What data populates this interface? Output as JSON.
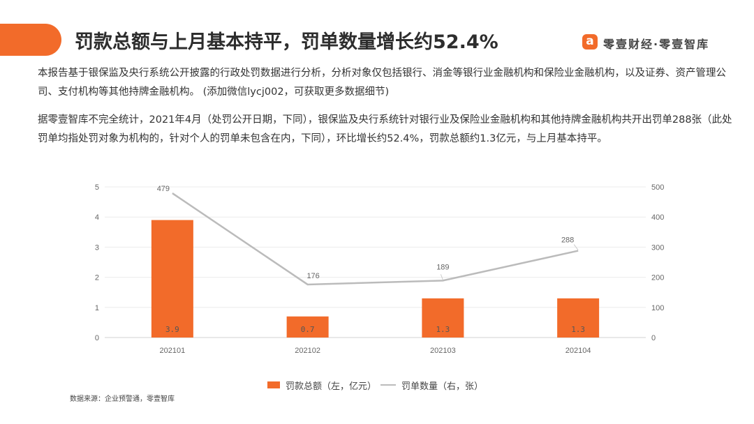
{
  "header": {
    "title": "罚款总额与上月基本持平，罚单数量增长约52.4%",
    "accent_color": "#F26B2A"
  },
  "brand": {
    "name": "零壹财经·零壹智库",
    "icon": "brand-a-icon",
    "icon_glyph": "a",
    "color": "#F26B2A"
  },
  "body": {
    "paragraph1": "本报告基于银保监及央行系统公开披露的行政处罚数据进行分析，分析对象仅包括银行、消金等银行业金融机构和保险业金融机构，以及证券、资产管理公司、支付机构等其他持牌金融机构。 (添加微信lycj002，可获取更多数据细节)",
    "paragraph2": "据零壹智库不完全统计，2021年4月（处罚公开日期，下同），银保监及央行系统针对银行业及保险业金融机构和其他持牌金融机构共开出罚单288张（此处罚单均指处罚对象为机构的，针对个人的罚单未包含在内，下同），环比增长约52.4%，罚款总额约1.3亿元，与上月基本持平。"
  },
  "chart_data": {
    "type": "bar",
    "categories": [
      "202101",
      "202102",
      "202103",
      "202104"
    ],
    "series": [
      {
        "name": "罚款总额（左，亿元）",
        "type": "bar",
        "axis": "left",
        "values": [
          3.9,
          0.7,
          1.3,
          1.3
        ],
        "labels": [
          "3.9",
          "0.7",
          "1.3",
          "1.3"
        ],
        "color": "#F26B2A"
      },
      {
        "name": "罚单数量（右，张）",
        "type": "line",
        "axis": "right",
        "values": [
          479,
          176,
          189,
          288
        ],
        "labels": [
          "479",
          "176",
          "189",
          "288"
        ],
        "color": "#BBBBBB"
      }
    ],
    "y_left": {
      "min": 0,
      "max": 5,
      "ticks": [
        "0",
        "1",
        "2",
        "3",
        "4",
        "5"
      ]
    },
    "y_right": {
      "min": 0,
      "max": 500,
      "ticks": [
        "0",
        "100",
        "200",
        "300",
        "400",
        "500"
      ]
    },
    "grid": true,
    "legend_position": "bottom"
  },
  "source": "数据来源：企业预警通，零壹智库"
}
